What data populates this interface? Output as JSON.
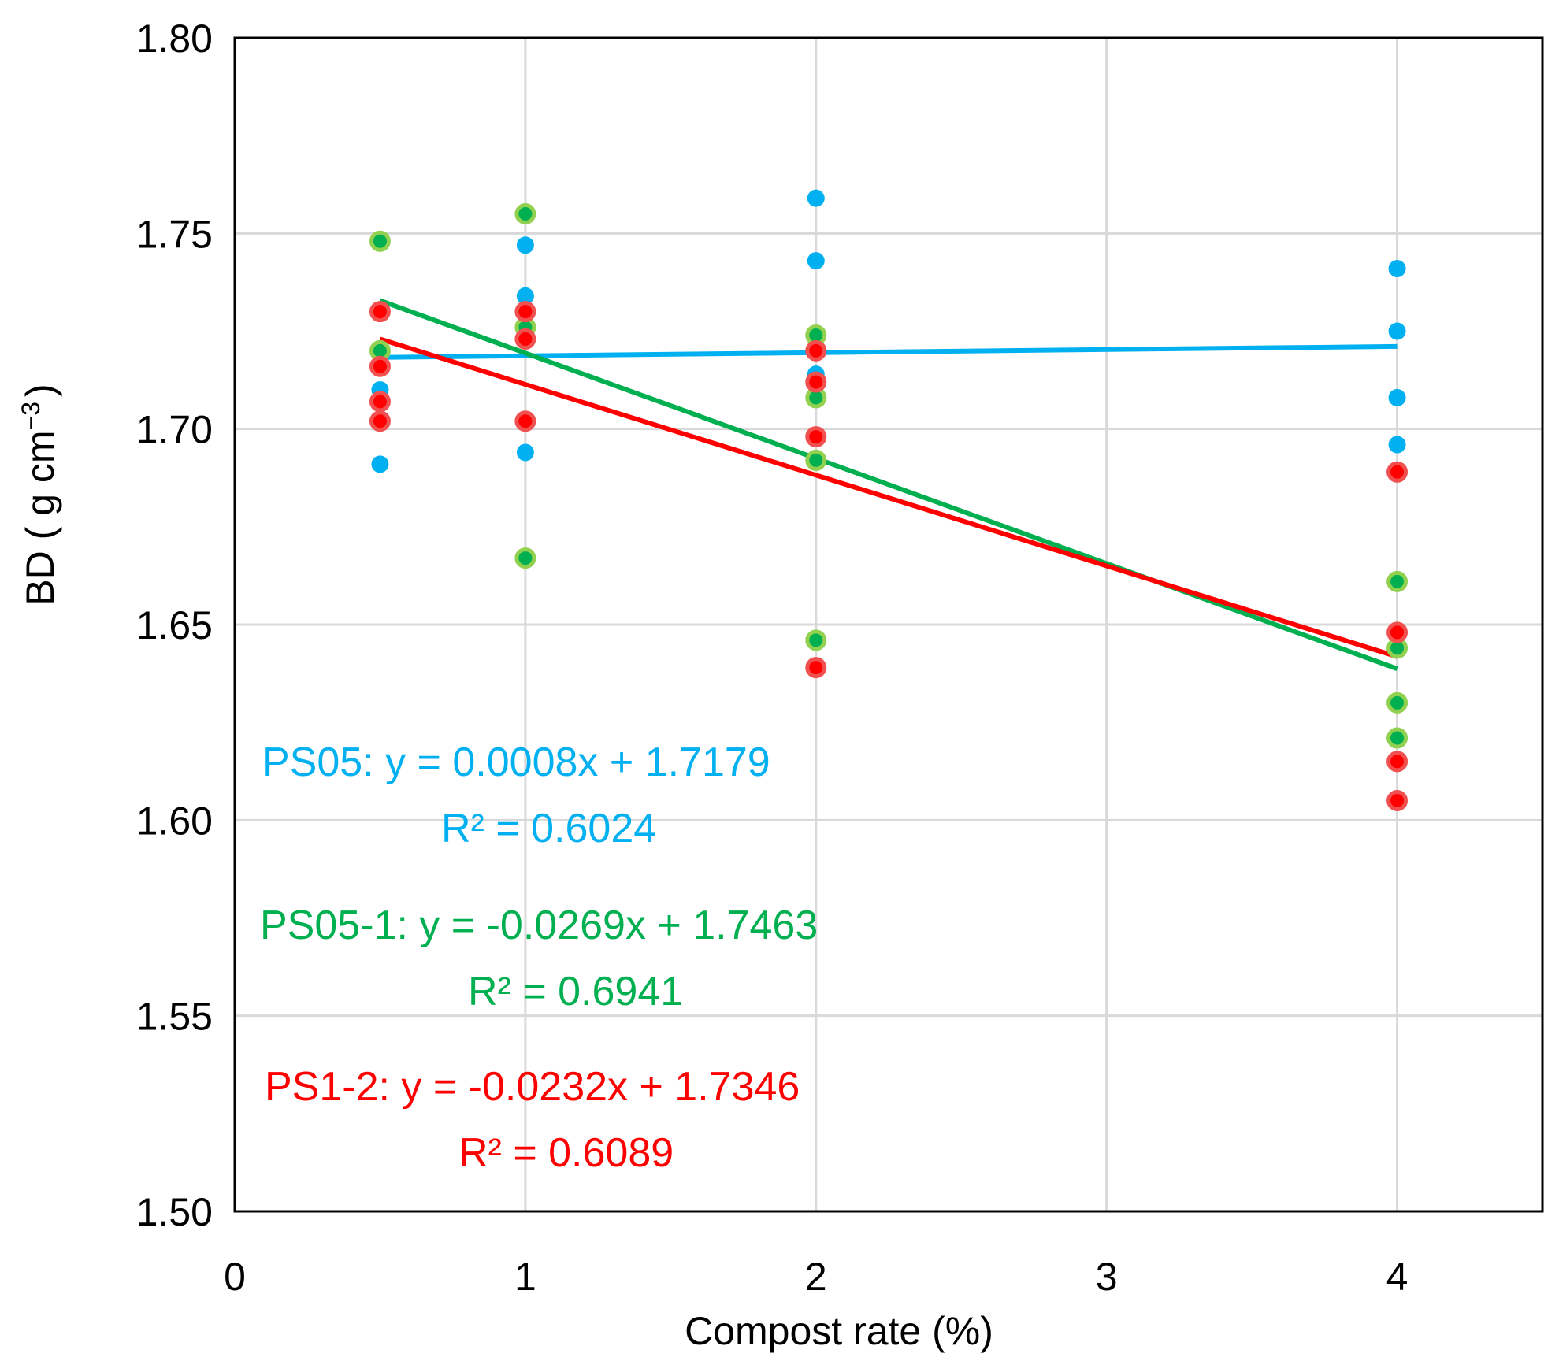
{
  "chart_data": {
    "type": "scatter",
    "title": "",
    "xlabel": "Compost rate (%)",
    "ylabel": {
      "text": "BD ( g cm",
      "sup": "−3",
      "close": ")"
    },
    "xlim": [
      0,
      4.5
    ],
    "ylim": [
      1.5,
      1.8
    ],
    "xticks": [
      0,
      1,
      2,
      3,
      4
    ],
    "xtick_labels": [
      "0",
      "1",
      "2",
      "3",
      "4"
    ],
    "yticks": [
      1.5,
      1.55,
      1.6,
      1.65,
      1.7,
      1.75,
      1.8
    ],
    "ytick_labels": [
      "1.50",
      "1.55",
      "1.60",
      "1.65",
      "1.70",
      "1.75",
      "1.80"
    ],
    "grid": true,
    "series": [
      {
        "name": "PS05",
        "color": "#00b0f0",
        "points": [
          [
            0.5,
            1.72
          ],
          [
            0.5,
            1.71
          ],
          [
            0.5,
            1.691
          ],
          [
            1,
            1.747
          ],
          [
            1,
            1.734
          ],
          [
            1,
            1.694
          ],
          [
            2,
            1.759
          ],
          [
            2,
            1.743
          ],
          [
            2,
            1.714
          ],
          [
            4,
            1.741
          ],
          [
            4,
            1.725
          ],
          [
            4,
            1.708
          ],
          [
            4,
            1.696
          ]
        ],
        "trendline": {
          "slope": 0.0008,
          "intercept": 1.7179,
          "x_range": [
            0.5,
            4
          ]
        },
        "equation": "PS05: y = 0.0008x + 1.7179",
        "r2": "R² = 0.6024"
      },
      {
        "name": "PS05-1",
        "color": "#00b050",
        "edge_color": "#92d050",
        "points": [
          [
            0.5,
            1.748
          ],
          [
            0.5,
            1.72
          ],
          [
            1,
            1.755
          ],
          [
            1,
            1.726
          ],
          [
            1,
            1.667
          ],
          [
            2,
            1.724
          ],
          [
            2,
            1.708
          ],
          [
            2,
            1.692
          ],
          [
            2,
            1.646
          ],
          [
            4,
            1.661
          ],
          [
            4,
            1.644
          ],
          [
            4,
            1.63
          ],
          [
            4,
            1.621
          ]
        ],
        "trendline": {
          "slope": -0.0269,
          "intercept": 1.7463,
          "x_range": [
            0.5,
            4
          ]
        },
        "equation": "PS05-1: y = -0.0269x + 1.7463",
        "r2": "R² = 0.6941"
      },
      {
        "name": "PS1-2",
        "color": "#ff0000",
        "edge_color": "#f05050",
        "points": [
          [
            0.5,
            1.73
          ],
          [
            0.5,
            1.716
          ],
          [
            0.5,
            1.707
          ],
          [
            0.5,
            1.702
          ],
          [
            1,
            1.73
          ],
          [
            1,
            1.723
          ],
          [
            1,
            1.702
          ],
          [
            2,
            1.72
          ],
          [
            2,
            1.712
          ],
          [
            2,
            1.698
          ],
          [
            2,
            1.639
          ],
          [
            4,
            1.689
          ],
          [
            4,
            1.648
          ],
          [
            4,
            1.615
          ],
          [
            4,
            1.605
          ]
        ],
        "trendline": {
          "slope": -0.0232,
          "intercept": 1.7346,
          "x_range": [
            0.5,
            4
          ]
        },
        "equation": "PS1-2: y = -0.0232x + 1.7346",
        "r2": "R² = 0.6089"
      }
    ]
  }
}
